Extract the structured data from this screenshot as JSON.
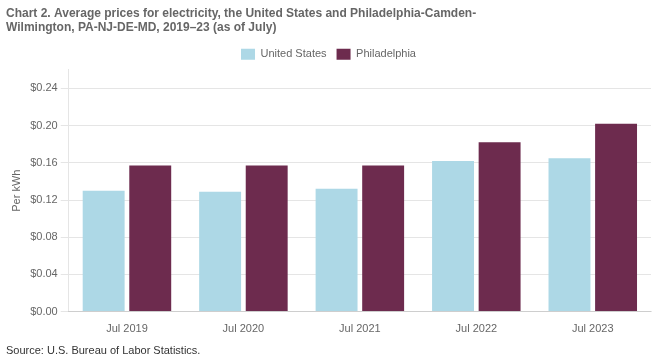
{
  "chart_data": {
    "type": "bar",
    "title": [
      "Chart 2. Average prices for electricity, the United States and Philadelphia-Camden-",
      "Wilmington, PA-NJ-DE-MD, 2019–23 (as of July)"
    ],
    "y_label": "Per kWh",
    "annotations": [
      "Source: U.S. Bureau of Labor Statistics."
    ],
    "categories": [
      "Jul 2019",
      "Jul 2020",
      "Jul 2021",
      "Jul 2022",
      "Jul 2023"
    ],
    "series": [
      {
        "name": "United States",
        "color": "#add8e6",
        "values": [
          0.13,
          0.129,
          0.132,
          0.162,
          0.165
        ]
      },
      {
        "name": "Philadelphia",
        "color": "#6d2b4e",
        "values": [
          0.157,
          0.157,
          0.157,
          0.182,
          0.202
        ]
      }
    ],
    "ylim": [
      0,
      0.26
    ],
    "yticks": [
      {
        "value": 0.0,
        "label": "$0.00"
      },
      {
        "value": 0.04,
        "label": "$0.04"
      },
      {
        "value": 0.08,
        "label": "$0.08"
      },
      {
        "value": 0.12,
        "label": "$0.12"
      },
      {
        "value": 0.16,
        "label": "$0.16"
      },
      {
        "value": 0.2,
        "label": "$0.20"
      },
      {
        "value": 0.24,
        "label": "$0.24"
      }
    ],
    "grid": true,
    "legend": "top"
  }
}
